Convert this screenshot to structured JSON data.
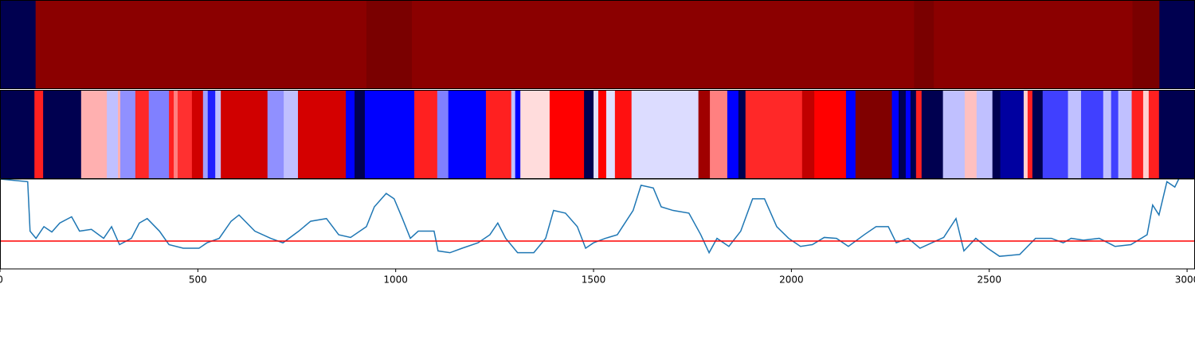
{
  "chart_data": [
    {
      "type": "strip",
      "xlim": [
        0,
        3020
      ],
      "edges": [
        0,
        90,
        926,
        1041,
        2310,
        2360,
        2862,
        2930,
        3020
      ],
      "colors": [
        "#000050",
        "#8b0000",
        "#7a0000",
        "#8b0000",
        "#7a0000",
        "#8b0000",
        "#7a0000",
        "#000050"
      ]
    },
    {
      "type": "strip",
      "xlim": [
        0,
        3020
      ],
      "edges": [
        0,
        87,
        109,
        205,
        270,
        298,
        304,
        342,
        376,
        427,
        439,
        449,
        485,
        513,
        525,
        544,
        558,
        676,
        717,
        753,
        874,
        896,
        922,
        1047,
        1105,
        1133,
        1228,
        1292,
        1302,
        1315,
        1389,
        1476,
        1500,
        1512,
        1532,
        1554,
        1596,
        1765,
        1794,
        1838,
        1866,
        1884,
        2027,
        2058,
        2138,
        2162,
        2254,
        2271,
        2289,
        2301,
        2315,
        2329,
        2383,
        2438,
        2468,
        2508,
        2528,
        2587,
        2597,
        2609,
        2635,
        2699,
        2732,
        2788,
        2808,
        2826,
        2860,
        2889,
        2903,
        2929,
        3020
      ],
      "colors": [
        "#000050",
        "#ff2020",
        "#000050",
        "#ffb0b0",
        "#c0c0ff",
        "#ffb0b0",
        "#9090ff",
        "#ff2828",
        "#8080ff",
        "#ff2020",
        "#ff8080",
        "#ff3030",
        "#d00000",
        "#a0a0ff",
        "#2020ff",
        "#c0c0ff",
        "#d00000",
        "#9090ff",
        "#c0c0ff",
        "#d40000",
        "#0000ff",
        "#000050",
        "#0000ff",
        "#ff2020",
        "#8080ff",
        "#0000ff",
        "#ff2020",
        "#c0c0ff",
        "#0000ff",
        "#ffdcdc",
        "#ff0000",
        "#000050",
        "#e0e0ff",
        "#ff0000",
        "#e0e0ff",
        "#ff1010",
        "#dcdcff",
        "#a00000",
        "#ff8080",
        "#0000ff",
        "#000050",
        "#ff2828",
        "#c00000",
        "#ff0000",
        "#0000ff",
        "#800000",
        "#0000ff",
        "#000050",
        "#0000ff",
        "#000050",
        "#ff2020",
        "#000050",
        "#c0c0ff",
        "#ffc0c0",
        "#c0c0ff",
        "#000050",
        "#0000a0",
        "#ffd0d0",
        "#ff2020",
        "#000050",
        "#4040ff",
        "#c0c0ff",
        "#4040ff",
        "#c0c0ff",
        "#4040ff",
        "#c0c0ff",
        "#ff2020",
        "#ffd0d0",
        "#ff2020",
        "#000050"
      ]
    },
    {
      "type": "line",
      "xlim": [
        0,
        3020
      ],
      "ylim": [
        0,
        100
      ],
      "xticks": [
        0,
        500,
        1000,
        1500,
        2000,
        2500,
        3000
      ],
      "color": "#1f77b4",
      "hline": {
        "value": 31,
        "color": "#ff0000"
      },
      "x": [
        0,
        70,
        76,
        91,
        111,
        131,
        151,
        181,
        201,
        231,
        262,
        282,
        302,
        332,
        352,
        372,
        403,
        427,
        463,
        503,
        523,
        554,
        584,
        604,
        644,
        684,
        715,
        755,
        785,
        825,
        856,
        886,
        926,
        946,
        976,
        996,
        1017,
        1037,
        1057,
        1097,
        1107,
        1137,
        1168,
        1208,
        1238,
        1258,
        1278,
        1308,
        1349,
        1379,
        1399,
        1429,
        1459,
        1480,
        1500,
        1530,
        1560,
        1600,
        1620,
        1651,
        1671,
        1701,
        1741,
        1771,
        1792,
        1812,
        1842,
        1872,
        1902,
        1932,
        1963,
        1993,
        2023,
        2053,
        2083,
        2114,
        2144,
        2184,
        2214,
        2245,
        2265,
        2295,
        2325,
        2355,
        2385,
        2416,
        2436,
        2466,
        2496,
        2526,
        2577,
        2617,
        2657,
        2687,
        2707,
        2738,
        2778,
        2818,
        2858,
        2899,
        2913,
        2929,
        2949,
        2969,
        2979
      ],
      "values": [
        100,
        97,
        42,
        34,
        47,
        41,
        51,
        58,
        42,
        44,
        34,
        47,
        27,
        34,
        51,
        56,
        42,
        27,
        23,
        23,
        29,
        34,
        53,
        60,
        42,
        34,
        29,
        42,
        53,
        56,
        38,
        35,
        47,
        69,
        84,
        78,
        56,
        34,
        42,
        42,
        20,
        18,
        23,
        29,
        38,
        51,
        34,
        18,
        18,
        34,
        65,
        62,
        47,
        23,
        29,
        34,
        38,
        65,
        93,
        90,
        69,
        65,
        62,
        38,
        18,
        34,
        25,
        42,
        78,
        78,
        47,
        34,
        25,
        27,
        35,
        34,
        25,
        38,
        47,
        47,
        29,
        34,
        23,
        29,
        35,
        56,
        20,
        34,
        23,
        14,
        16,
        34,
        34,
        29,
        34,
        32,
        34,
        25,
        27,
        38,
        71,
        60,
        97,
        91,
        100
      ]
    }
  ]
}
